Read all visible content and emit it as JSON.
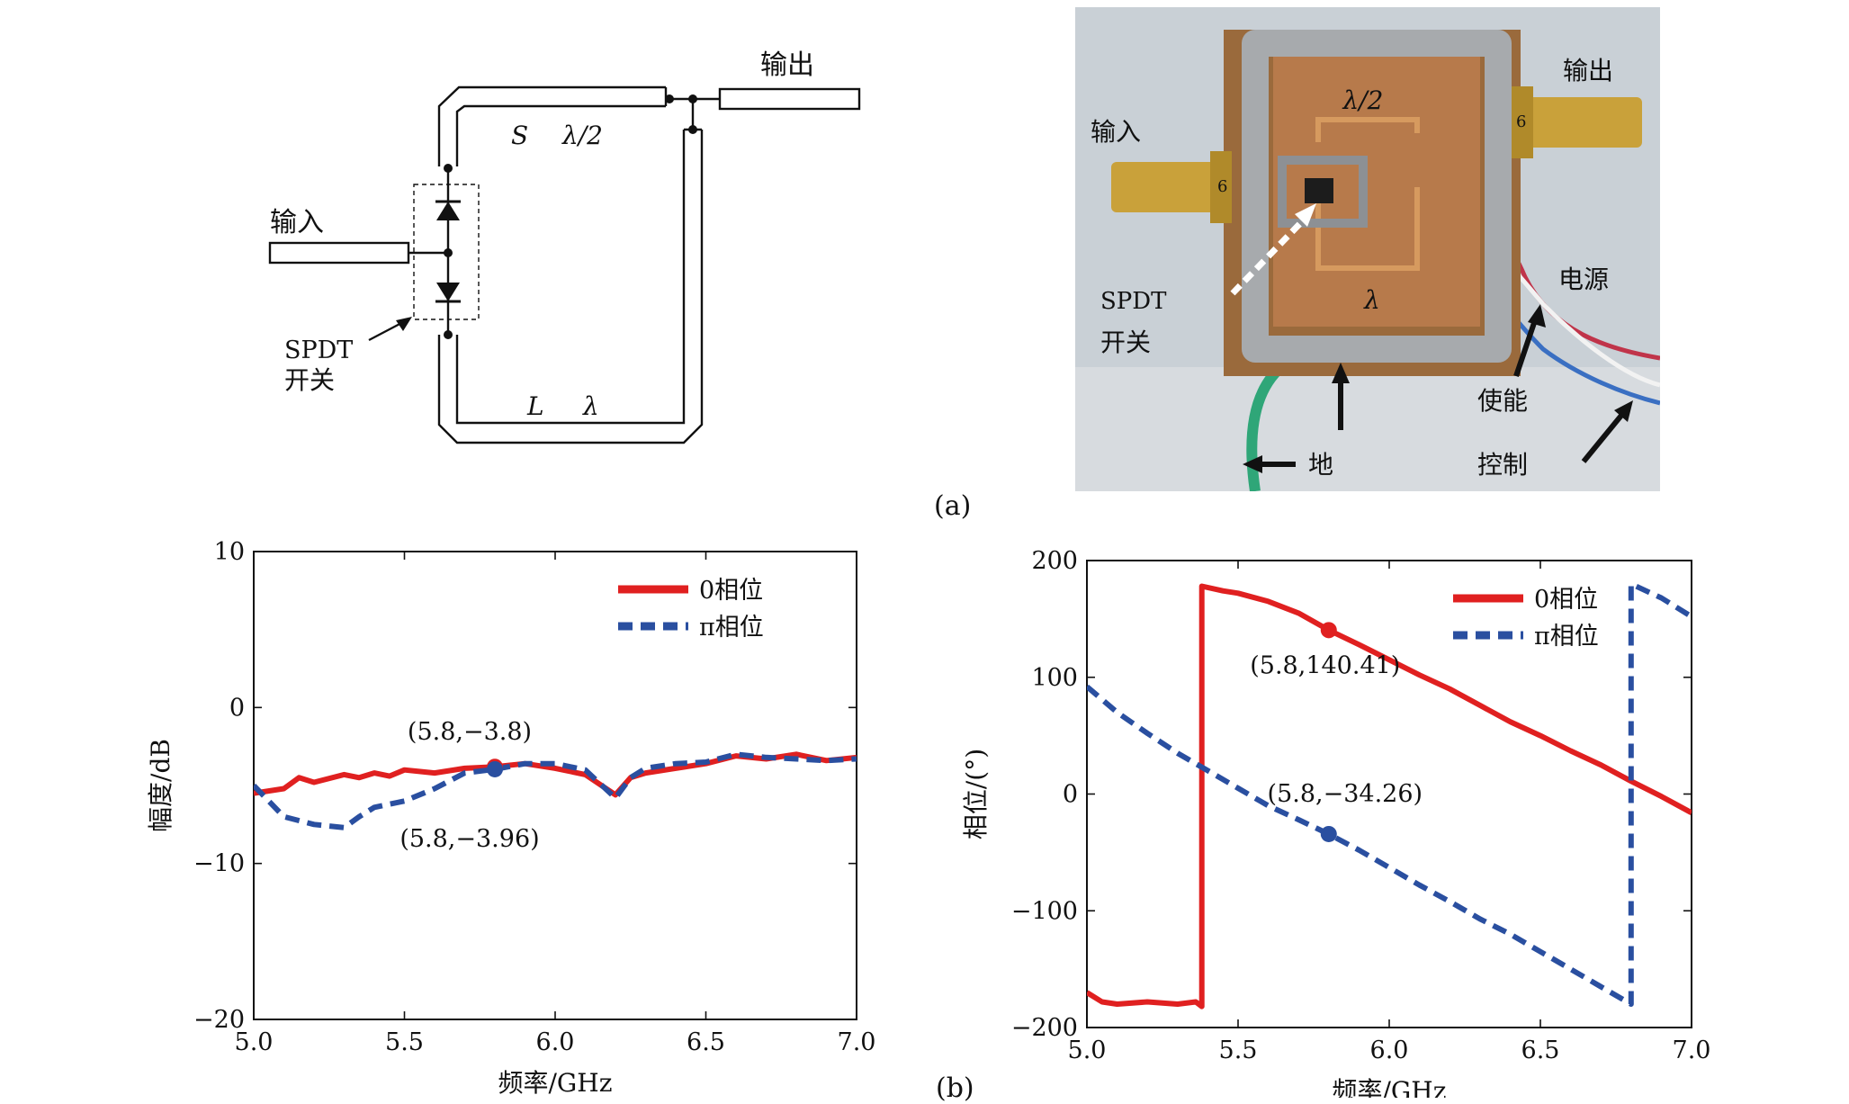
{
  "figure": {
    "caption_a": "(a)",
    "caption_b": "(b)",
    "schematic": {
      "label_output": "输出",
      "label_input": "输入",
      "label_spdt": "SPDT",
      "label_switch": "开关",
      "label_S": "S",
      "label_half_lambda": "λ/2",
      "label_L": "L",
      "label_lambda": "λ"
    },
    "photo": {
      "label_half_lambda": "λ/2",
      "label_output": "输出",
      "label_input": "输入",
      "label_spdt": "SPDT",
      "label_switch": "开关",
      "label_lambda": "λ",
      "label_power": "电源",
      "label_enable": "使能",
      "label_ground": "地",
      "label_control": "控制",
      "connector_mark_left": "6",
      "connector_mark_right": "6",
      "colors": {
        "board": "#9a6a3c",
        "copper": "#b77a4b",
        "solder": "#a7aaad",
        "connector": "#c9a13a",
        "wire_red": "#c0344a",
        "wire_blue": "#3a6fc2",
        "wire_green": "#2fa678",
        "background": "#c9d0d6"
      }
    }
  },
  "chart_data": [
    {
      "type": "line",
      "xlabel": "频率/GHz",
      "ylabel": "幅度/dB",
      "xlim": [
        5.0,
        7.0
      ],
      "ylim": [
        -20,
        10
      ],
      "xticks": [
        "5.0",
        "5.5",
        "6.0",
        "6.5",
        "7.0"
      ],
      "yticks": [
        "10",
        "0",
        "−10",
        "−20"
      ],
      "legend_position": "top-right",
      "grid": false,
      "series": [
        {
          "name": "0相位",
          "color": "#e02020",
          "style": "solid",
          "x": [
            5.0,
            5.1,
            5.15,
            5.2,
            5.3,
            5.35,
            5.4,
            5.45,
            5.5,
            5.6,
            5.7,
            5.8,
            5.9,
            6.0,
            6.1,
            6.2,
            6.25,
            6.3,
            6.4,
            6.5,
            6.6,
            6.7,
            6.8,
            6.9,
            7.0
          ],
          "y": [
            -5.5,
            -5.2,
            -4.5,
            -4.8,
            -4.3,
            -4.5,
            -4.2,
            -4.4,
            -4.0,
            -4.2,
            -3.9,
            -3.8,
            -3.6,
            -3.9,
            -4.3,
            -5.6,
            -4.5,
            -4.2,
            -3.9,
            -3.6,
            -3.1,
            -3.3,
            -3.0,
            -3.4,
            -3.2
          ]
        },
        {
          "name": "π相位",
          "color": "#2a4fa0",
          "style": "dashed",
          "x": [
            5.0,
            5.05,
            5.1,
            5.2,
            5.3,
            5.35,
            5.4,
            5.5,
            5.6,
            5.7,
            5.8,
            5.9,
            6.0,
            6.1,
            6.2,
            6.25,
            6.3,
            6.4,
            6.5,
            6.6,
            6.7,
            6.8,
            6.9,
            7.0
          ],
          "y": [
            -5.0,
            -6.0,
            -7.0,
            -7.5,
            -7.7,
            -7.0,
            -6.4,
            -6.0,
            -5.2,
            -4.2,
            -3.96,
            -3.6,
            -3.6,
            -4.0,
            -5.8,
            -4.5,
            -3.9,
            -3.6,
            -3.5,
            -3.0,
            -3.2,
            -3.3,
            -3.4,
            -3.3
          ]
        }
      ],
      "annotations": [
        {
          "label": "(5.8,−3.8)",
          "x": 5.8,
          "y": -3.8,
          "series": "0相位",
          "placement": "above"
        },
        {
          "label": "(5.8,−3.96)",
          "x": 5.8,
          "y": -3.96,
          "series": "π相位",
          "placement": "below"
        }
      ]
    },
    {
      "type": "line",
      "xlabel": "频率/GHz",
      "ylabel": "相位/(°)",
      "xlim": [
        5.0,
        7.0
      ],
      "ylim": [
        -200,
        200
      ],
      "xticks": [
        "5.0",
        "5.5",
        "6.0",
        "6.5",
        "7.0"
      ],
      "yticks": [
        "200",
        "100",
        "0",
        "−100",
        "−200"
      ],
      "legend_position": "top-right",
      "grid": false,
      "series": [
        {
          "name": "0相位",
          "color": "#e02020",
          "style": "solid",
          "x": [
            5.0,
            5.05,
            5.1,
            5.2,
            5.3,
            5.36,
            5.38,
            5.38,
            5.45,
            5.5,
            5.6,
            5.7,
            5.8,
            5.9,
            6.0,
            6.1,
            6.2,
            6.3,
            6.4,
            6.5,
            6.6,
            6.7,
            6.8,
            6.9,
            7.0
          ],
          "y": [
            -170,
            -178,
            -180,
            -178,
            -180,
            -178,
            -182,
            178,
            174,
            172,
            165,
            155,
            140.41,
            128,
            115,
            102,
            90,
            76,
            62,
            50,
            37,
            25,
            11,
            -2,
            -16
          ]
        },
        {
          "name": "π相位",
          "color": "#2a4fa0",
          "style": "dashed",
          "x": [
            5.0,
            5.1,
            5.2,
            5.3,
            5.4,
            5.5,
            5.6,
            5.7,
            5.8,
            5.9,
            6.0,
            6.1,
            6.2,
            6.3,
            6.4,
            6.5,
            6.6,
            6.7,
            6.8,
            6.8,
            6.9,
            7.0
          ],
          "y": [
            92,
            70,
            52,
            35,
            20,
            5,
            -10,
            -22,
            -34.26,
            -48,
            -63,
            -78,
            -92,
            -107,
            -120,
            -135,
            -150,
            -165,
            -180,
            180,
            168,
            152
          ]
        }
      ],
      "annotations": [
        {
          "label": "(5.8,140.41)",
          "x": 5.8,
          "y": 140.41,
          "series": "0相位",
          "placement": "below"
        },
        {
          "label": "(5.8,−34.26)",
          "x": 5.8,
          "y": -34.26,
          "series": "π相位",
          "placement": "above"
        }
      ]
    }
  ]
}
